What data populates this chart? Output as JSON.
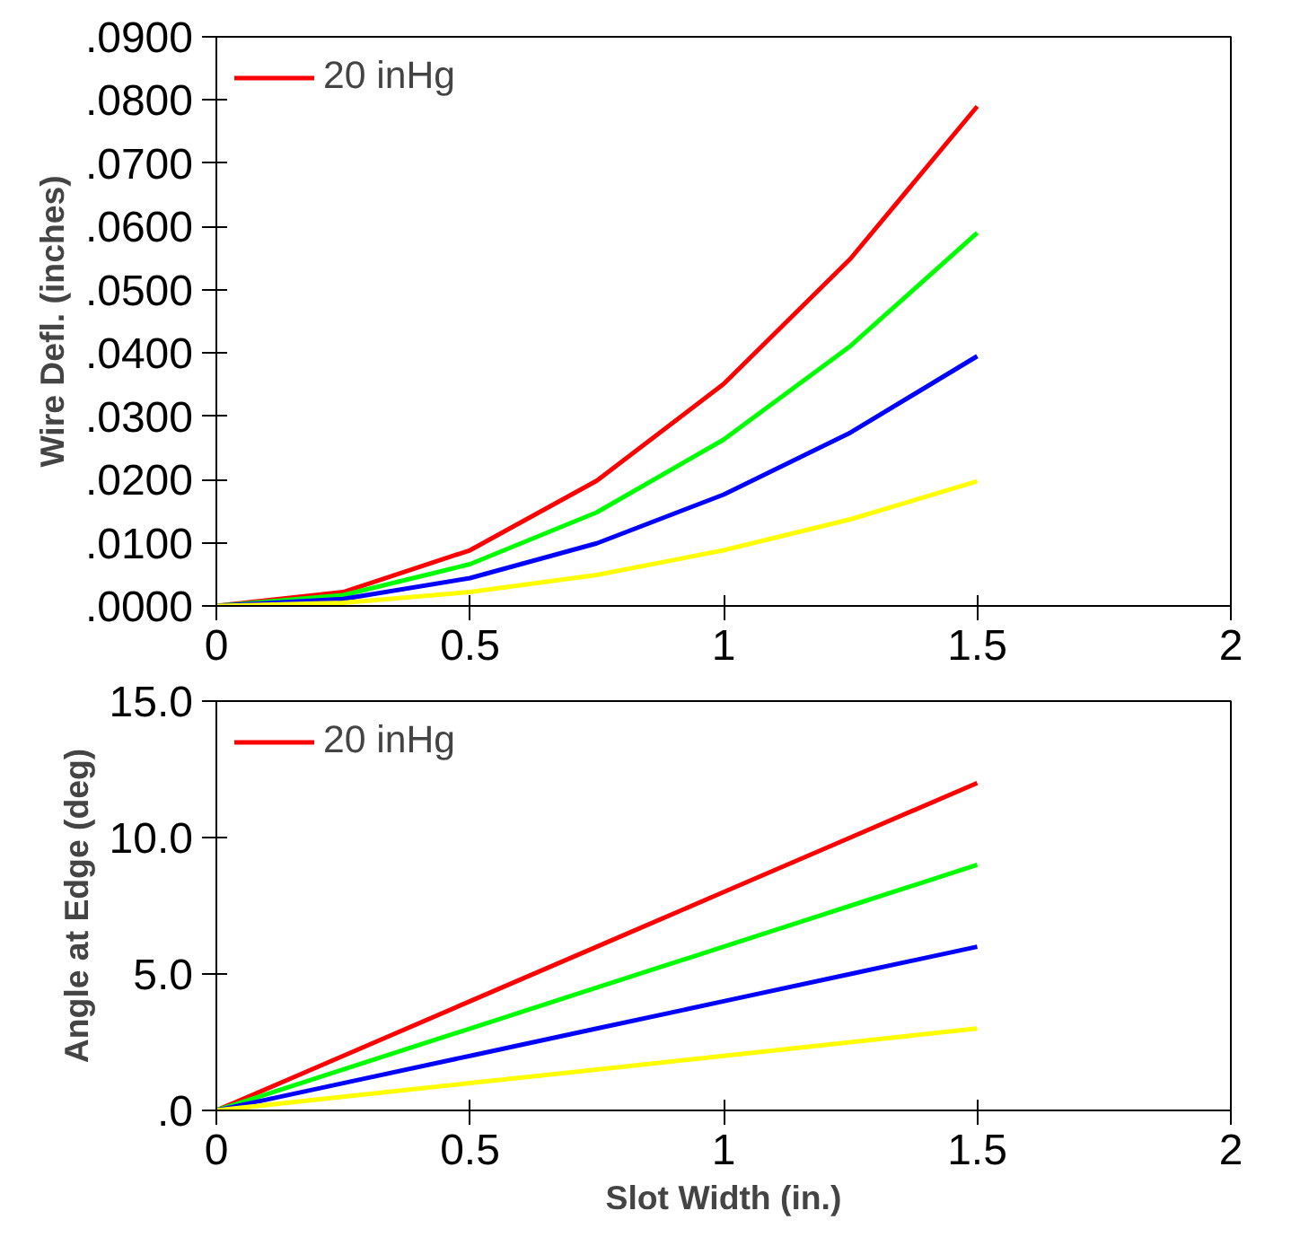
{
  "chart_data": [
    {
      "type": "line",
      "ylabel": "Wire Defl. (inches)",
      "x": [
        0,
        0.25,
        0.5,
        0.75,
        1,
        1.25,
        1.5
      ],
      "xlim": [
        0,
        2
      ],
      "xticks": [
        0,
        0.5,
        1,
        1.5,
        2
      ],
      "ylim": [
        0,
        0.09
      ],
      "yticks": [
        {
          "value": 0,
          "label": ".0000"
        },
        {
          "value": 0.01,
          "label": ".0100"
        },
        {
          "value": 0.02,
          "label": ".0200"
        },
        {
          "value": 0.03,
          "label": ".0300"
        },
        {
          "value": 0.04,
          "label": ".0400"
        },
        {
          "value": 0.05,
          "label": ".0500"
        },
        {
          "value": 0.06,
          "label": ".0600"
        },
        {
          "value": 0.07,
          "label": ".0700"
        },
        {
          "value": 0.08,
          "label": ".0800"
        },
        {
          "value": 0.09,
          "label": ".0900"
        }
      ],
      "grid": false,
      "legend": "top left",
      "marker": "none",
      "line_style": "solid",
      "series": [
        {
          "name": "20 inHg",
          "color": "#ff0000",
          "values": [
            0,
            0.0022,
            0.0088,
            0.0198,
            0.0351,
            0.0549,
            0.079
          ]
        },
        {
          "color": "#00ff00",
          "values": [
            0,
            0.0017,
            0.0066,
            0.0148,
            0.0263,
            0.0411,
            0.059
          ]
        },
        {
          "color": "#0000ff",
          "values": [
            0,
            0.0011,
            0.0044,
            0.0099,
            0.0176,
            0.0274,
            0.0395
          ]
        },
        {
          "color": "#ffff00",
          "values": [
            0,
            0.0005,
            0.0022,
            0.0049,
            0.0088,
            0.0137,
            0.0197
          ]
        }
      ]
    },
    {
      "type": "line",
      "xlabel": "Slot Width (in.)",
      "ylabel": "Angle at Edge (deg)",
      "x": [
        0,
        0.25,
        0.5,
        0.75,
        1,
        1.25,
        1.5
      ],
      "xlim": [
        0,
        2
      ],
      "xticks": [
        0,
        0.5,
        1,
        1.5,
        2
      ],
      "ylim": [
        0,
        15
      ],
      "yticks": [
        {
          "value": 0,
          "label": ".0"
        },
        {
          "value": 5,
          "label": "5.0"
        },
        {
          "value": 10,
          "label": "10.0"
        },
        {
          "value": 15,
          "label": "15.0"
        }
      ],
      "grid": false,
      "legend": "top left",
      "marker": "none",
      "line_style": "solid",
      "series": [
        {
          "name": "20 inHg",
          "color": "#ff0000",
          "values": [
            0,
            2,
            4,
            6,
            8,
            10,
            12
          ]
        },
        {
          "color": "#00ff00",
          "values": [
            0,
            1.5,
            3,
            4.5,
            6,
            7.5,
            9
          ]
        },
        {
          "color": "#0000ff",
          "values": [
            0,
            1,
            2,
            3,
            4,
            5,
            6
          ]
        },
        {
          "color": "#ffff00",
          "values": [
            0,
            0.5,
            1,
            1.5,
            2,
            2.5,
            3
          ]
        }
      ]
    }
  ]
}
